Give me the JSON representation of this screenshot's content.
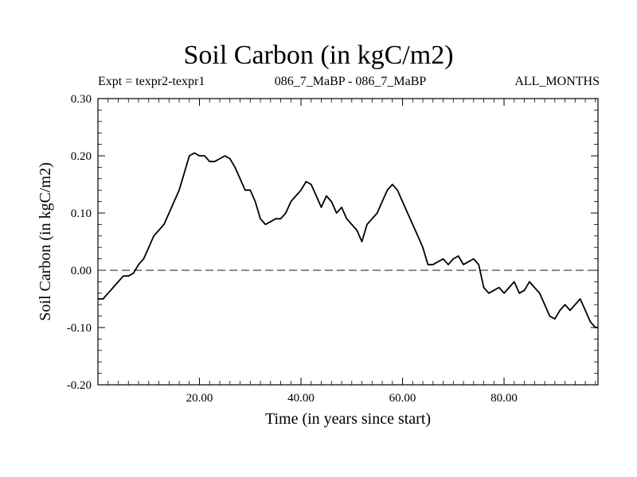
{
  "header": {
    "title": "Soil Carbon (in kgC/m2)",
    "subtitle_left": "Expt = texpr2-texpr1",
    "subtitle_center": "086_7_MaBP - 086_7_MaBP",
    "subtitle_right": "ALL_MONTHS"
  },
  "chart_data": {
    "type": "line",
    "title": "Soil Carbon (in kgC/m2)",
    "xlabel": "Time (in years since start)",
    "ylabel": "Soil Carbon (in kgC/m2)",
    "xlim": [
      0,
      98.5
    ],
    "ylim": [
      -0.2,
      0.3
    ],
    "xticks": [
      20,
      40,
      60,
      80
    ],
    "xtick_labels": [
      "20.00",
      "40.00",
      "60.00",
      "80.00"
    ],
    "yticks": [
      -0.2,
      -0.1,
      0.0,
      0.1,
      0.2,
      0.3
    ],
    "ytick_labels": [
      "-0.20",
      "-0.10",
      "0.00",
      "0.10",
      "0.20",
      "0.30"
    ],
    "reference_line": {
      "y": 0.0,
      "style": "dashed"
    },
    "grid": false,
    "series": [
      {
        "x": [
          0,
          1,
          2,
          3,
          4,
          5,
          6,
          7,
          8,
          9,
          10,
          11,
          12,
          13,
          14,
          15,
          16,
          17,
          18,
          19,
          20,
          21,
          22,
          23,
          24,
          25,
          26,
          27,
          28,
          29,
          30,
          31,
          32,
          33,
          34,
          35,
          36,
          37,
          38,
          39,
          40,
          41,
          42,
          43,
          44,
          45,
          46,
          47,
          48,
          49,
          50,
          51,
          52,
          53,
          54,
          55,
          56,
          57,
          58,
          59,
          60,
          61,
          62,
          63,
          64,
          65,
          66,
          67,
          68,
          69,
          70,
          71,
          72,
          73,
          74,
          75,
          76,
          77,
          78,
          79,
          80,
          81,
          82,
          83,
          84,
          85,
          86,
          87,
          88,
          89,
          90,
          91,
          92,
          93,
          94,
          95,
          96,
          97,
          98,
          98.5
        ],
        "y": [
          -0.05,
          -0.05,
          -0.04,
          -0.03,
          -0.02,
          -0.01,
          -0.01,
          -0.005,
          0.01,
          0.02,
          0.04,
          0.06,
          0.07,
          0.08,
          0.1,
          0.12,
          0.14,
          0.17,
          0.2,
          0.205,
          0.2,
          0.2,
          0.19,
          0.19,
          0.195,
          0.2,
          0.195,
          0.18,
          0.16,
          0.14,
          0.14,
          0.12,
          0.09,
          0.08,
          0.085,
          0.09,
          0.09,
          0.1,
          0.12,
          0.13,
          0.14,
          0.155,
          0.15,
          0.13,
          0.11,
          0.13,
          0.12,
          0.1,
          0.11,
          0.09,
          0.08,
          0.07,
          0.05,
          0.08,
          0.09,
          0.1,
          0.12,
          0.14,
          0.15,
          0.14,
          0.12,
          0.1,
          0.08,
          0.06,
          0.04,
          0.01,
          0.01,
          0.015,
          0.02,
          0.01,
          0.02,
          0.025,
          0.01,
          0.015,
          0.02,
          0.01,
          -0.03,
          -0.04,
          -0.035,
          -0.03,
          -0.04,
          -0.03,
          -0.02,
          -0.04,
          -0.035,
          -0.02,
          -0.03,
          -0.04,
          -0.06,
          -0.08,
          -0.085,
          -0.07,
          -0.06,
          -0.07,
          -0.06,
          -0.05,
          -0.07,
          -0.09,
          -0.1,
          -0.1
        ]
      }
    ]
  }
}
